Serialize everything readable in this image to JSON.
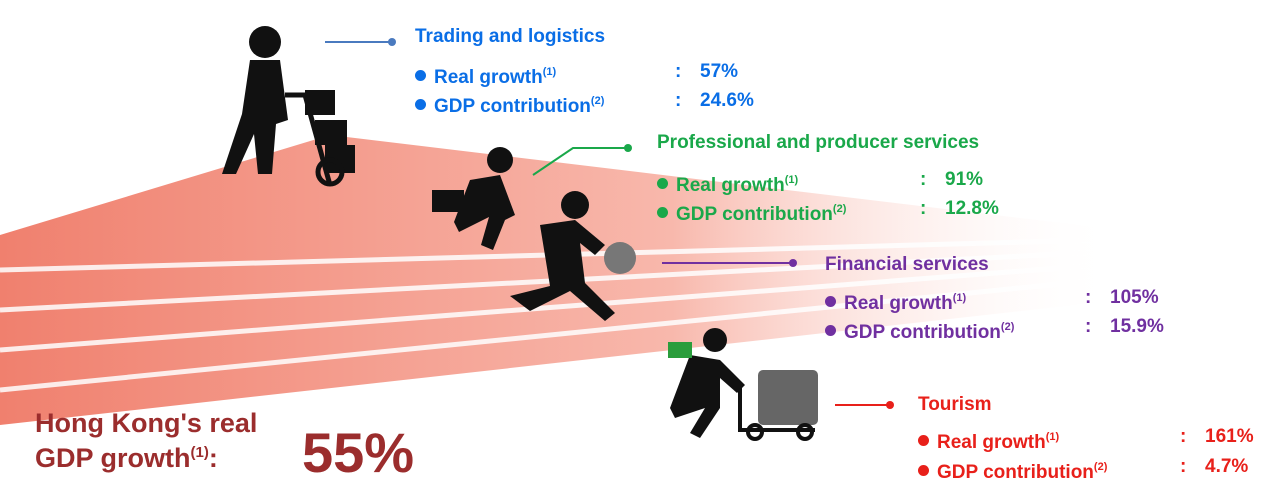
{
  "sectors": [
    {
      "name": "Trading and logistics",
      "color": "#0a6ee6",
      "items": [
        {
          "label": "Real growth",
          "note": "(1)",
          "colon": ":",
          "value": "57%"
        },
        {
          "label": "GDP contribution",
          "note": "(2)",
          "colon": ":",
          "value": "24.6%"
        }
      ]
    },
    {
      "name": "Professional and producer services",
      "color": "#1aa84a",
      "items": [
        {
          "label": "Real growth",
          "note": "(1)",
          "colon": ":",
          "value": "91%"
        },
        {
          "label": "GDP contribution",
          "note": "(2)",
          "colon": ":",
          "value": "12.8%"
        }
      ]
    },
    {
      "name": "Financial services",
      "color": "#7030a0",
      "items": [
        {
          "label": "Real growth",
          "note": "(1)",
          "colon": ":",
          "value": "105%"
        },
        {
          "label": "GDP contribution",
          "note": "(2)",
          "colon": ":",
          "value": "15.9%"
        }
      ]
    },
    {
      "name": "Tourism",
      "color": "#e8201a",
      "items": [
        {
          "label": "Real growth",
          "note": "(1)",
          "colon": ":",
          "value": "161%"
        },
        {
          "label": "GDP contribution",
          "note": "(2)",
          "colon": ":",
          "value": "4.7%"
        }
      ]
    }
  ],
  "summary": {
    "label_line1": "Hong Kong's real",
    "label_line2": "GDP growth",
    "note": "(1)",
    "colon": ":",
    "value": "55%"
  }
}
